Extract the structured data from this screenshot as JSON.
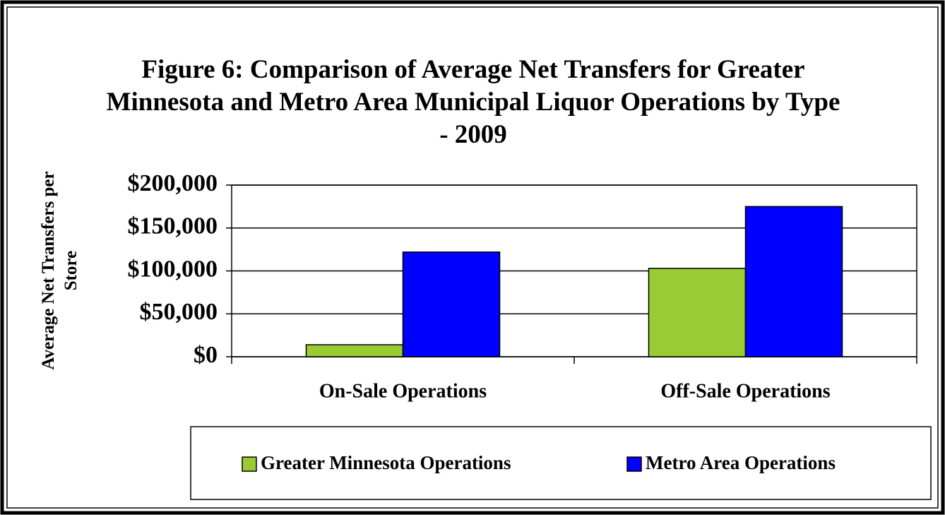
{
  "chart_data": {
    "type": "bar",
    "title": "Figure 6: Comparison of Average Net Transfers for Greater Minnesota and Metro Area Municipal Liquor Operations by Type - 2009",
    "ylabel": "Average Net Transfers per Store",
    "categories": [
      "On-Sale Operations",
      "Off-Sale Operations"
    ],
    "series": [
      {
        "name": "Greater Minnesota Operations",
        "color": "#99cc33",
        "values": [
          14000,
          103000
        ]
      },
      {
        "name": "Metro Area Operations",
        "color": "#0000ff",
        "values": [
          122000,
          175000
        ]
      }
    ],
    "ylim": [
      0,
      200000
    ],
    "yticks": [
      {
        "value": 0,
        "label": "$0"
      },
      {
        "value": 50000,
        "label": "$50,000"
      },
      {
        "value": 100000,
        "label": "$100,000"
      },
      {
        "value": 150000,
        "label": "$150,000"
      },
      {
        "value": 200000,
        "label": "$200,000"
      }
    ],
    "grid": true,
    "legend": "bottom"
  }
}
